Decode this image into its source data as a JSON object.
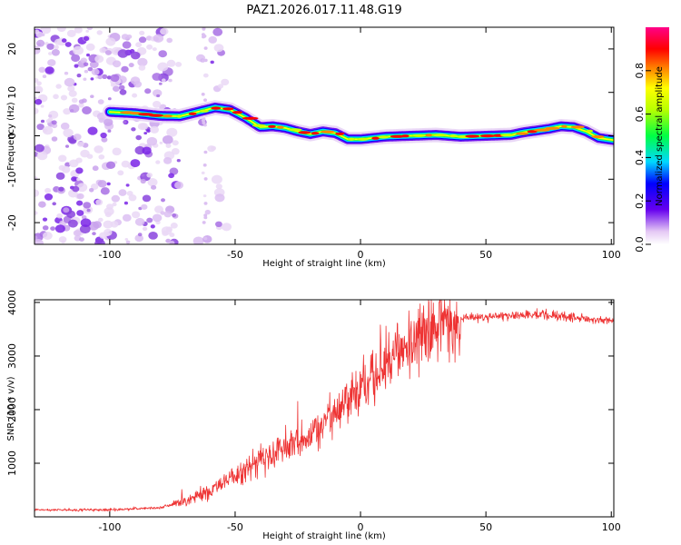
{
  "title": "PAZ1.2026.017.11.48.G19",
  "chart_data": [
    {
      "type": "heatmap",
      "xlabel": "Height of straight line (km)",
      "ylabel": "Frequency (Hz)",
      "xlim": [
        -130,
        101
      ],
      "ylim": [
        -25,
        25
      ],
      "xticks": [
        -100,
        -50,
        0,
        50,
        100
      ],
      "yticks": [
        -20,
        -10,
        0,
        10,
        20
      ],
      "colorbar": {
        "label": "Normalized spectral amplitude",
        "range": [
          0,
          1
        ],
        "ticks": [
          "0.0",
          "0.2",
          "0.4",
          "0.6",
          "0.8"
        ],
        "tick_values": [
          0,
          0.2,
          0.4,
          0.6,
          0.8
        ]
      },
      "ridge": {
        "x": [
          -100,
          -90,
          -80,
          -72,
          -65,
          -58,
          -52,
          -46,
          -40,
          -35,
          -30,
          -25,
          -20,
          -15,
          -10,
          -5,
          0,
          5,
          10,
          20,
          30,
          40,
          50,
          60,
          65,
          70,
          75,
          80,
          85,
          90,
          95,
          101
        ],
        "freq": [
          5.5,
          5.2,
          4.6,
          4.5,
          5.5,
          6.5,
          6.0,
          4.2,
          2.0,
          2.2,
          1.8,
          1.0,
          0.4,
          1.0,
          0.6,
          -0.8,
          -0.8,
          -0.5,
          -0.2,
          0,
          0.2,
          -0.2,
          0,
          0.2,
          0.8,
          1.2,
          1.6,
          2.2,
          2.0,
          1.0,
          -0.5,
          -1.0
        ]
      },
      "noise_region": [
        -130,
        -60
      ]
    },
    {
      "type": "line",
      "xlabel": "Height of straight line (km)",
      "ylabel": "SNR (10 * v/v)",
      "xlim": [
        -130,
        101
      ],
      "ylim": [
        0,
        4050
      ],
      "xticks": [
        -100,
        -50,
        0,
        50,
        100
      ],
      "yticks": [
        1000,
        2000,
        3000,
        4000
      ],
      "color": "#ee3333",
      "envelope": {
        "x": [
          -130,
          -100,
          -80,
          -70,
          -60,
          -50,
          -40,
          -30,
          -20,
          -10,
          0,
          10,
          20,
          30,
          40,
          50,
          60,
          70,
          80,
          90,
          101
        ],
        "snr": [
          130,
          130,
          170,
          280,
          500,
          750,
          1050,
          1300,
          1500,
          1950,
          2400,
          2800,
          3250,
          3550,
          3700,
          3720,
          3760,
          3780,
          3750,
          3700,
          3650
        ]
      }
    }
  ]
}
